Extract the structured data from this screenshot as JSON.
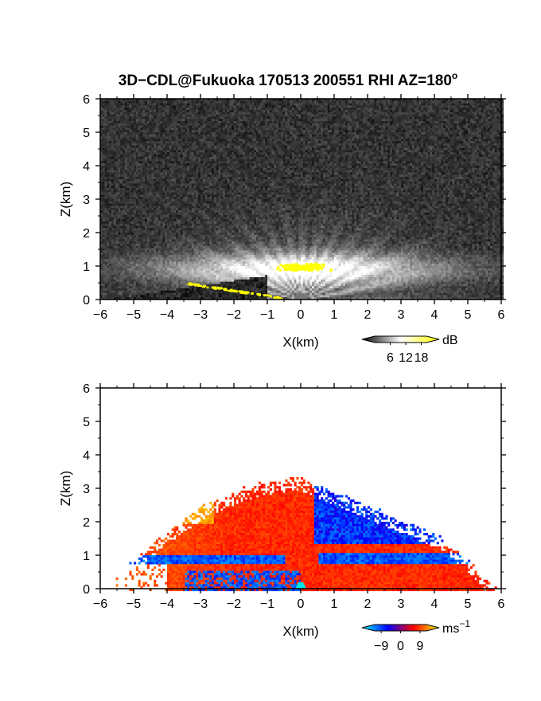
{
  "title": "3D-CDL@Fukuoka 170513 200551 RHI AZ=180°",
  "title_parts": {
    "main": "3D−CDL@Fukuoka 170513 200551 RHI AZ=180",
    "superscript": "o"
  },
  "chart_data": [
    {
      "type": "heatmap",
      "quantity": "reflectivity",
      "xlabel": "X(km)",
      "ylabel": "Z(km)",
      "xlim": [
        -6,
        6
      ],
      "ylim": [
        0,
        6
      ],
      "x_ticks": [
        "−6",
        "−5",
        "−4",
        "−3",
        "−2",
        "−1",
        "0",
        "1",
        "2",
        "3",
        "4",
        "5",
        "6"
      ],
      "y_ticks": [
        "0",
        "1",
        "2",
        "3",
        "4",
        "5",
        "6"
      ],
      "colorbar": {
        "unit": "dB",
        "tick_labels": [
          "6",
          "12",
          "18"
        ],
        "tick_values": [
          6,
          12,
          18
        ],
        "range": [
          0,
          20
        ],
        "colors": [
          "#000000",
          "#ffffff",
          "#ffff00"
        ]
      },
      "features": {
        "bright_layer_center_km": [
          0,
          1.0
        ],
        "ground_return_yellow_x_km": [
          -3.4,
          -0.5
        ]
      }
    },
    {
      "type": "heatmap",
      "quantity": "doppler_velocity",
      "xlabel": "X(km)",
      "ylabel": "Z(km)",
      "xlim": [
        -6,
        6
      ],
      "ylim": [
        0,
        6
      ],
      "x_ticks": [
        "−6",
        "−5",
        "−4",
        "−3",
        "−2",
        "−1",
        "0",
        "1",
        "2",
        "3",
        "4",
        "5",
        "6"
      ],
      "y_ticks": [
        "0",
        "1",
        "2",
        "3",
        "4",
        "5",
        "6"
      ],
      "colorbar": {
        "unit": "ms",
        "unit_superscript": "−1",
        "tick_labels": [
          "−9",
          "0",
          "9"
        ],
        "tick_values": [
          -9,
          0,
          9
        ],
        "range": [
          -12,
          12
        ],
        "colors": [
          "#00ffff",
          "#0000ff",
          "#ff0000",
          "#ffff00"
        ]
      },
      "features": {
        "echo_top_km": 3.3,
        "negative_region_x_km": [
          0.4,
          4.0
        ]
      }
    }
  ]
}
